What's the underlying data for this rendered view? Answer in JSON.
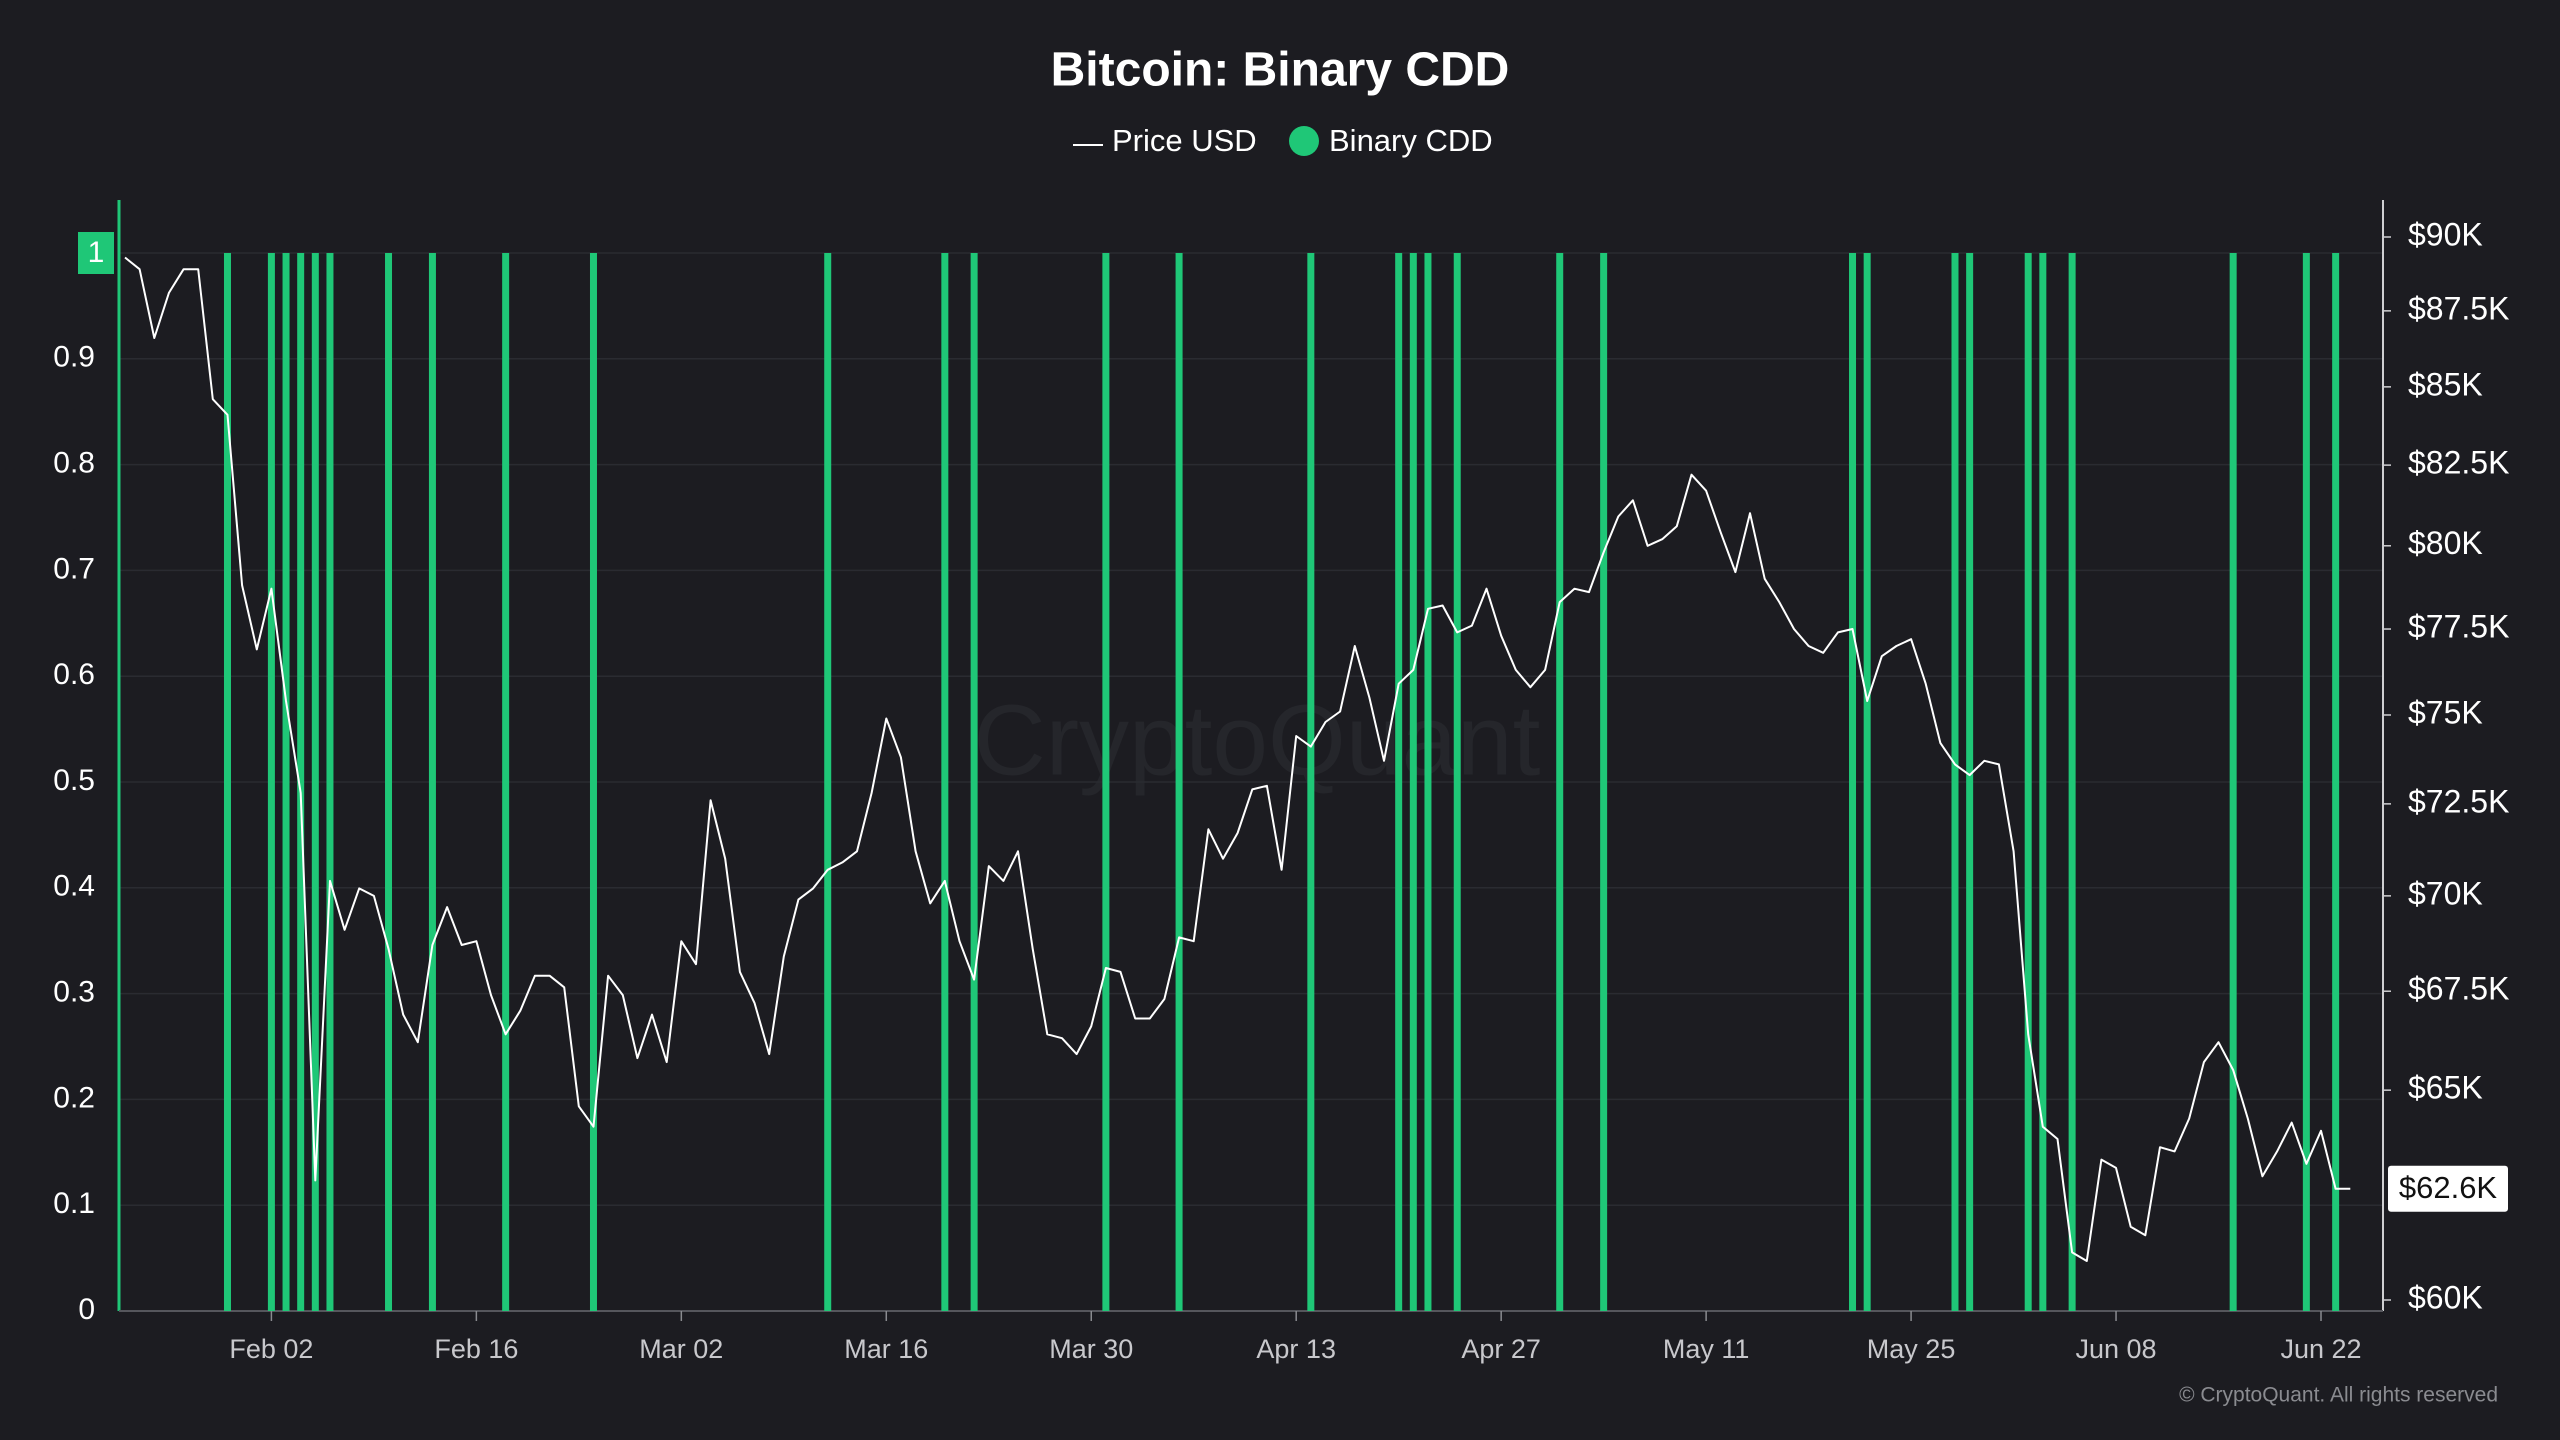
{
  "chart_data": {
    "type": "combo",
    "title": "Bitcoin: Binary CDD",
    "watermark": "CryptoQuant",
    "copyright": "© CryptoQuant. All rights reserved",
    "categories": [
      "Jan 23",
      "Jan 24",
      "Jan 25",
      "Jan 26",
      "Jan 27",
      "Jan 28",
      "Jan 29",
      "Jan 30",
      "Jan 31",
      "Feb 01",
      "Feb 02",
      "Feb 03",
      "Feb 04",
      "Feb 05",
      "Feb 06",
      "Feb 07",
      "Feb 08",
      "Feb 09",
      "Feb 10",
      "Feb 11",
      "Feb 12",
      "Feb 13",
      "Feb 14",
      "Feb 15",
      "Feb 16",
      "Feb 17",
      "Feb 18",
      "Feb 19",
      "Feb 20",
      "Feb 21",
      "Feb 22",
      "Feb 23",
      "Feb 24",
      "Feb 25",
      "Feb 26",
      "Feb 27",
      "Feb 28",
      "Mar 01",
      "Mar 02",
      "Mar 03",
      "Mar 04",
      "Mar 05",
      "Mar 06",
      "Mar 07",
      "Mar 08",
      "Mar 09",
      "Mar 10",
      "Mar 11",
      "Mar 12",
      "Mar 13",
      "Mar 14",
      "Mar 15",
      "Mar 16",
      "Mar 17",
      "Mar 18",
      "Mar 19",
      "Mar 20",
      "Mar 21",
      "Mar 22",
      "Mar 23",
      "Mar 24",
      "Mar 25",
      "Mar 26",
      "Mar 27",
      "Mar 28",
      "Mar 29",
      "Mar 30",
      "Mar 31",
      "Apr 01",
      "Apr 02",
      "Apr 03",
      "Apr 04",
      "Apr 05",
      "Apr 06",
      "Apr 07",
      "Apr 08",
      "Apr 09",
      "Apr 10",
      "Apr 11",
      "Apr 12",
      "Apr 13",
      "Apr 14",
      "Apr 15",
      "Apr 16",
      "Apr 17",
      "Apr 18",
      "Apr 19",
      "Apr 20",
      "Apr 21",
      "Apr 22",
      "Apr 23",
      "Apr 24",
      "Apr 25",
      "Apr 26",
      "Apr 27",
      "Apr 28",
      "Apr 29",
      "Apr 30",
      "May 01",
      "May 02",
      "May 03",
      "May 04",
      "May 05",
      "May 06",
      "May 07",
      "May 08",
      "May 09",
      "May 10",
      "May 11",
      "May 12",
      "May 13",
      "May 14",
      "May 15",
      "May 16",
      "May 17",
      "May 18",
      "May 19",
      "May 20",
      "May 21",
      "May 22",
      "May 23",
      "May 24",
      "May 25",
      "May 26",
      "May 27",
      "May 28",
      "May 29",
      "May 30",
      "May 31",
      "Jun 01",
      "Jun 02",
      "Jun 03",
      "Jun 04",
      "Jun 05",
      "Jun 06",
      "Jun 07",
      "Jun 08",
      "Jun 09",
      "Jun 10",
      "Jun 11",
      "Jun 12",
      "Jun 13",
      "Jun 14",
      "Jun 15",
      "Jun 16",
      "Jun 17",
      "Jun 18",
      "Jun 19",
      "Jun 20",
      "Jun 21",
      "Jun 22",
      "Jun 23",
      "Jun 24"
    ],
    "xticks": [
      "Feb 02",
      "Feb 16",
      "Mar 02",
      "Mar 16",
      "Mar 30",
      "Apr 13",
      "Apr 27",
      "May 11",
      "May 25",
      "Jun 08",
      "Jun 22"
    ],
    "series": [
      {
        "name": "Price USD",
        "type": "line",
        "axis": "y2",
        "color": "#ffffff",
        "values": [
          89300,
          88900,
          86600,
          88100,
          88900,
          88900,
          84600,
          84100,
          78800,
          76900,
          78700,
          75400,
          72800,
          62800,
          70400,
          69100,
          70200,
          70000,
          68600,
          66900,
          66200,
          68700,
          69700,
          68700,
          68800,
          67400,
          66400,
          67000,
          67900,
          67900,
          67600,
          64600,
          64100,
          67900,
          67400,
          65800,
          66900,
          65700,
          68800,
          68200,
          72600,
          71000,
          68000,
          67200,
          65900,
          68400,
          69900,
          70200,
          70700,
          70900,
          71200,
          72800,
          74900,
          73800,
          71200,
          69800,
          70400,
          68800,
          67800,
          70800,
          70400,
          71200,
          68600,
          66400,
          66300,
          65900,
          66600,
          68100,
          68000,
          66800,
          66800,
          67300,
          68900,
          68800,
          71800,
          71000,
          71700,
          72900,
          73000,
          70700,
          74400,
          74100,
          74800,
          75100,
          77000,
          75500,
          73700,
          75900,
          76300,
          78100,
          78200,
          77400,
          77600,
          78700,
          77300,
          76300,
          75800,
          76300,
          78300,
          78700,
          78600,
          79800,
          80900,
          81400,
          80000,
          80200,
          80600,
          82200,
          81700,
          80400,
          79200,
          81000,
          79000,
          78300,
          77500,
          77000,
          76800,
          77400,
          77500,
          75400,
          76700,
          77000,
          77200,
          75900,
          74200,
          73600,
          73300,
          73700,
          73600,
          71200,
          66400,
          64100,
          63800,
          61100,
          60900,
          63300,
          63100,
          61700,
          61500,
          63600,
          63500,
          64300,
          65700,
          66200,
          65500,
          64300,
          62900,
          63500,
          64200,
          63200,
          64000,
          62600,
          62600
        ]
      },
      {
        "name": "Binary CDD",
        "type": "bar",
        "axis": "y",
        "color": "#1fc777",
        "values": [
          0,
          0,
          0,
          0,
          0,
          0,
          0,
          1,
          0,
          0,
          1,
          1,
          1,
          1,
          1,
          0,
          0,
          0,
          1,
          0,
          0,
          1,
          0,
          0,
          0,
          0,
          1,
          0,
          0,
          0,
          0,
          0,
          1,
          0,
          0,
          0,
          0,
          0,
          0,
          0,
          0,
          0,
          0,
          0,
          0,
          0,
          0,
          0,
          1,
          0,
          0,
          0,
          0,
          0,
          0,
          0,
          1,
          0,
          1,
          0,
          0,
          0,
          0,
          0,
          0,
          0,
          0,
          1,
          0,
          0,
          0,
          0,
          1,
          0,
          0,
          0,
          0,
          0,
          0,
          0,
          0,
          1,
          0,
          0,
          0,
          0,
          0,
          1,
          1,
          1,
          0,
          1,
          0,
          0,
          0,
          0,
          0,
          0,
          1,
          0,
          0,
          1,
          0,
          0,
          0,
          0,
          0,
          0,
          0,
          0,
          0,
          0,
          0,
          0,
          0,
          0,
          0,
          0,
          1,
          1,
          0,
          0,
          0,
          0,
          0,
          1,
          1,
          0,
          0,
          0,
          1,
          1,
          0,
          1,
          0,
          0,
          0,
          0,
          0,
          0,
          0,
          0,
          0,
          0,
          1,
          0,
          0,
          0,
          0,
          1,
          0,
          1,
          0
        ]
      }
    ],
    "ylim": [
      0,
      1
    ],
    "yticks": [
      0,
      0.1,
      0.2,
      0.3,
      0.4,
      0.5,
      0.6,
      0.7,
      0.8,
      0.9,
      1
    ],
    "y2lim": [
      60000,
      90000
    ],
    "y2log": true,
    "y2ticks": [
      {
        "value": 60000,
        "label": "$60K"
      },
      {
        "value": 65000,
        "label": "$65K"
      },
      {
        "value": 67500,
        "label": "$67.5K"
      },
      {
        "value": 70000,
        "label": "$70K"
      },
      {
        "value": 72500,
        "label": "$72.5K"
      },
      {
        "value": 75000,
        "label": "$75K"
      },
      {
        "value": 77500,
        "label": "$77.5K"
      },
      {
        "value": 80000,
        "label": "$80K"
      },
      {
        "value": 82500,
        "label": "$82.5K"
      },
      {
        "value": 85000,
        "label": "$85K"
      },
      {
        "value": 87500,
        "label": "$87.5K"
      },
      {
        "value": 90000,
        "label": "$90K"
      }
    ],
    "current_price": {
      "value": 62600,
      "label": "$62.6K"
    },
    "grid": true,
    "legend": "top"
  }
}
